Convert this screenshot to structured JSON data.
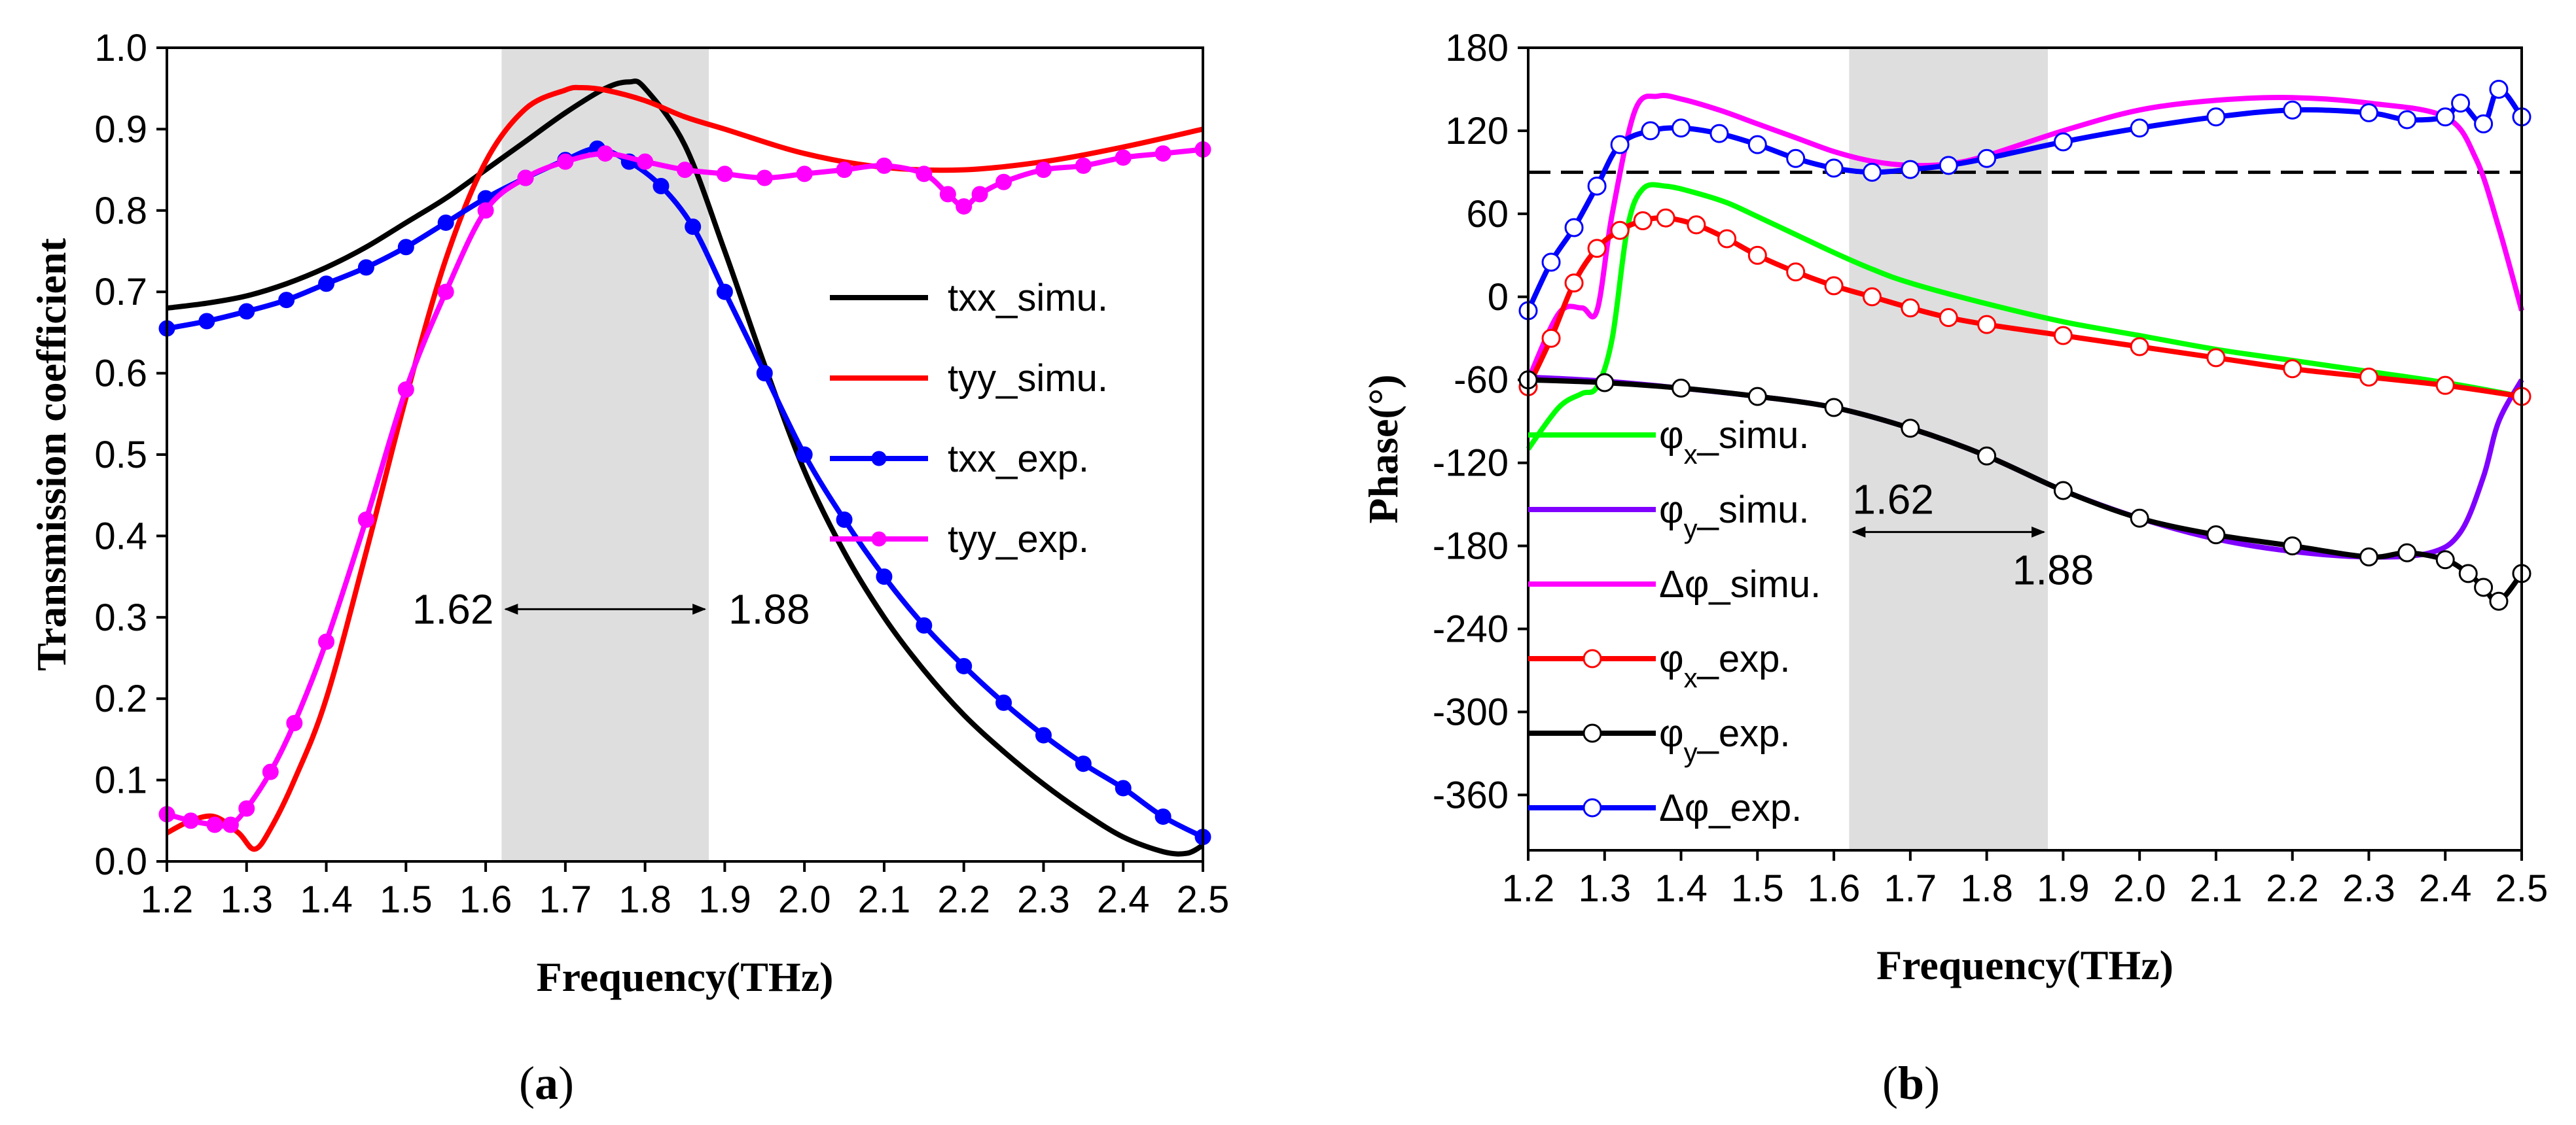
{
  "chart_data": [
    {
      "id": "a",
      "type": "line",
      "caption_open": "(",
      "caption": "a",
      "caption_close": ")",
      "xlabel": "Frequency(THz)",
      "ylabel": "Transmission coefficient",
      "xlim": [
        1.2,
        2.5
      ],
      "ylim": [
        0.0,
        1.0
      ],
      "xticks": [
        "1.2",
        "1.3",
        "1.4",
        "1.5",
        "1.6",
        "1.7",
        "1.8",
        "1.9",
        "2.0",
        "2.1",
        "2.2",
        "2.3",
        "2.4",
        "2.5"
      ],
      "yticks": [
        "0.0",
        "0.1",
        "0.2",
        "0.3",
        "0.4",
        "0.5",
        "0.6",
        "0.7",
        "0.8",
        "0.9",
        "1.0"
      ],
      "band": [
        1.62,
        1.88
      ],
      "band_color": "#dedede",
      "annotation": {
        "left": "1.62",
        "right": "1.88",
        "y": 0.31
      },
      "legend_position": "right",
      "series": [
        {
          "name": "txx_simu.",
          "color": "#000000",
          "marker": "none",
          "x": [
            1.2,
            1.25,
            1.3,
            1.35,
            1.4,
            1.45,
            1.5,
            1.55,
            1.6,
            1.65,
            1.7,
            1.75,
            1.78,
            1.8,
            1.85,
            1.9,
            1.95,
            2.0,
            2.05,
            2.1,
            2.15,
            2.2,
            2.25,
            2.3,
            2.35,
            2.4,
            2.45,
            2.48,
            2.5
          ],
          "y": [
            0.68,
            0.686,
            0.695,
            0.71,
            0.73,
            0.755,
            0.785,
            0.815,
            0.85,
            0.885,
            0.92,
            0.95,
            0.958,
            0.95,
            0.88,
            0.75,
            0.61,
            0.48,
            0.38,
            0.3,
            0.235,
            0.18,
            0.135,
            0.095,
            0.06,
            0.03,
            0.012,
            0.01,
            0.02
          ]
        },
        {
          "name": "tyy_simu.",
          "color": "#ff0000",
          "marker": "none",
          "x": [
            1.2,
            1.23,
            1.26,
            1.29,
            1.31,
            1.33,
            1.36,
            1.4,
            1.45,
            1.5,
            1.55,
            1.6,
            1.65,
            1.7,
            1.72,
            1.75,
            1.8,
            1.85,
            1.9,
            2.0,
            2.1,
            2.2,
            2.3,
            2.4,
            2.5
          ],
          "y": [
            0.035,
            0.05,
            0.055,
            0.035,
            0.015,
            0.04,
            0.1,
            0.2,
            0.38,
            0.57,
            0.74,
            0.86,
            0.925,
            0.948,
            0.951,
            0.948,
            0.935,
            0.915,
            0.9,
            0.87,
            0.853,
            0.85,
            0.86,
            0.878,
            0.9
          ]
        },
        {
          "name": "txx_exp.",
          "color": "#0000ff",
          "marker": "filled",
          "x": [
            1.2,
            1.25,
            1.3,
            1.35,
            1.4,
            1.45,
            1.5,
            1.55,
            1.6,
            1.65,
            1.7,
            1.74,
            1.78,
            1.82,
            1.86,
            1.9,
            1.95,
            2.0,
            2.05,
            2.1,
            2.15,
            2.2,
            2.25,
            2.3,
            2.35,
            2.4,
            2.45,
            2.5
          ],
          "y": [
            0.655,
            0.664,
            0.676,
            0.69,
            0.71,
            0.73,
            0.755,
            0.785,
            0.815,
            0.84,
            0.862,
            0.876,
            0.86,
            0.83,
            0.78,
            0.7,
            0.6,
            0.5,
            0.42,
            0.35,
            0.29,
            0.24,
            0.195,
            0.155,
            0.12,
            0.09,
            0.055,
            0.03
          ]
        },
        {
          "name": "tyy_exp.",
          "color": "#ff00ff",
          "marker": "filled",
          "x": [
            1.2,
            1.23,
            1.26,
            1.28,
            1.3,
            1.33,
            1.36,
            1.4,
            1.45,
            1.5,
            1.55,
            1.6,
            1.65,
            1.7,
            1.75,
            1.8,
            1.85,
            1.9,
            1.95,
            2.0,
            2.05,
            2.1,
            2.15,
            2.18,
            2.2,
            2.22,
            2.25,
            2.3,
            2.35,
            2.4,
            2.45,
            2.5
          ],
          "y": [
            0.058,
            0.05,
            0.045,
            0.045,
            0.065,
            0.11,
            0.17,
            0.27,
            0.42,
            0.58,
            0.7,
            0.8,
            0.84,
            0.86,
            0.87,
            0.86,
            0.85,
            0.845,
            0.84,
            0.845,
            0.85,
            0.855,
            0.845,
            0.82,
            0.805,
            0.82,
            0.835,
            0.85,
            0.855,
            0.865,
            0.87,
            0.875
          ]
        }
      ]
    },
    {
      "id": "b",
      "type": "line",
      "caption_open": "(",
      "caption": "b",
      "caption_close": ")",
      "xlabel": "Frequency(THz)",
      "ylabel": "Phase(°)",
      "xlim": [
        1.2,
        2.5
      ],
      "ylim": [
        -400,
        180
      ],
      "xticks": [
        "1.2",
        "1.3",
        "1.4",
        "1.5",
        "1.6",
        "1.7",
        "1.8",
        "1.9",
        "2.0",
        "2.1",
        "2.2",
        "2.3",
        "2.4",
        "2.5"
      ],
      "yticks": [
        "-360",
        "-300",
        "-240",
        "-180",
        "-120",
        "-60",
        "0",
        "60",
        "120",
        "180"
      ],
      "band": [
        1.62,
        1.88
      ],
      "band_color": "#dedede",
      "reference_line": 90,
      "annotation": {
        "left": "1.62",
        "right": "1.88",
        "y": -170
      },
      "legend_position": "left",
      "series": [
        {
          "name": "φx_simu.",
          "label_main": "φ",
          "label_sub": "x",
          "label_rest": "_simu.",
          "color": "#00ff00",
          "marker": "none",
          "x": [
            1.2,
            1.24,
            1.27,
            1.29,
            1.31,
            1.33,
            1.35,
            1.38,
            1.42,
            1.46,
            1.5,
            1.55,
            1.6,
            1.65,
            1.7,
            1.8,
            1.9,
            2.0,
            2.1,
            2.2,
            2.3,
            2.4,
            2.5
          ],
          "y": [
            -110,
            -80,
            -70,
            -65,
            -30,
            50,
            78,
            80,
            75,
            68,
            58,
            45,
            32,
            20,
            10,
            -5,
            -18,
            -28,
            -38,
            -46,
            -54,
            -62,
            -72
          ]
        },
        {
          "name": "φy_simu.",
          "label_main": "φ",
          "label_sub": "y",
          "label_rest": "_simu.",
          "color": "#8000ff",
          "marker": "none",
          "x": [
            1.2,
            1.3,
            1.4,
            1.5,
            1.6,
            1.7,
            1.8,
            1.9,
            2.0,
            2.1,
            2.2,
            2.3,
            2.38,
            2.42,
            2.45,
            2.47,
            2.5
          ],
          "y": [
            -58,
            -61,
            -66,
            -72,
            -80,
            -95,
            -115,
            -140,
            -160,
            -175,
            -184,
            -188,
            -185,
            -170,
            -130,
            -90,
            -60
          ]
        },
        {
          "name": "Δφ_simu.",
          "label_main": "Δφ",
          "label_sub": "",
          "label_rest": "_simu.",
          "color": "#ff00ff",
          "marker": "none",
          "x": [
            1.2,
            1.24,
            1.27,
            1.29,
            1.31,
            1.34,
            1.37,
            1.4,
            1.45,
            1.5,
            1.55,
            1.6,
            1.65,
            1.7,
            1.75,
            1.8,
            1.9,
            2.0,
            2.1,
            2.2,
            2.3,
            2.4,
            2.44,
            2.47,
            2.5
          ],
          "y": [
            -60,
            -12,
            -8,
            -10,
            60,
            135,
            145,
            143,
            135,
            125,
            115,
            105,
            98,
            95,
            96,
            102,
            120,
            135,
            142,
            144,
            140,
            130,
            100,
            50,
            -10
          ]
        },
        {
          "name": "φx_exp.",
          "label_main": "φ",
          "label_sub": "x",
          "label_rest": "_exp.",
          "color": "#ff0000",
          "marker": "open",
          "x": [
            1.2,
            1.23,
            1.26,
            1.29,
            1.32,
            1.35,
            1.38,
            1.42,
            1.46,
            1.5,
            1.55,
            1.6,
            1.65,
            1.7,
            1.75,
            1.8,
            1.9,
            2.0,
            2.1,
            2.2,
            2.3,
            2.4,
            2.5
          ],
          "y": [
            -65,
            -30,
            10,
            35,
            48,
            55,
            57,
            52,
            42,
            30,
            18,
            8,
            0,
            -8,
            -15,
            -20,
            -28,
            -36,
            -44,
            -52,
            -58,
            -64,
            -72
          ]
        },
        {
          "name": "φy_exp.",
          "label_main": "φ",
          "label_sub": "y",
          "label_rest": "_exp.",
          "color": "#000000",
          "marker": "open",
          "x": [
            1.2,
            1.3,
            1.4,
            1.5,
            1.6,
            1.7,
            1.8,
            1.9,
            2.0,
            2.1,
            2.2,
            2.3,
            2.35,
            2.4,
            2.43,
            2.45,
            2.47,
            2.5
          ],
          "y": [
            -60,
            -62,
            -66,
            -72,
            -80,
            -95,
            -115,
            -140,
            -160,
            -172,
            -180,
            -188,
            -185,
            -190,
            -200,
            -210,
            -220,
            -200
          ]
        },
        {
          "name": "Δφ_exp.",
          "label_main": "Δφ",
          "label_sub": "",
          "label_rest": "_exp.",
          "color": "#0000ff",
          "marker": "open",
          "x": [
            1.2,
            1.23,
            1.26,
            1.29,
            1.32,
            1.36,
            1.4,
            1.45,
            1.5,
            1.55,
            1.6,
            1.65,
            1.7,
            1.75,
            1.8,
            1.9,
            2.0,
            2.1,
            2.2,
            2.3,
            2.35,
            2.4,
            2.42,
            2.45,
            2.47,
            2.5
          ],
          "y": [
            -10,
            25,
            50,
            80,
            110,
            120,
            122,
            118,
            110,
            100,
            93,
            90,
            92,
            95,
            100,
            112,
            122,
            130,
            135,
            133,
            128,
            130,
            140,
            125,
            150,
            130
          ]
        }
      ]
    }
  ]
}
